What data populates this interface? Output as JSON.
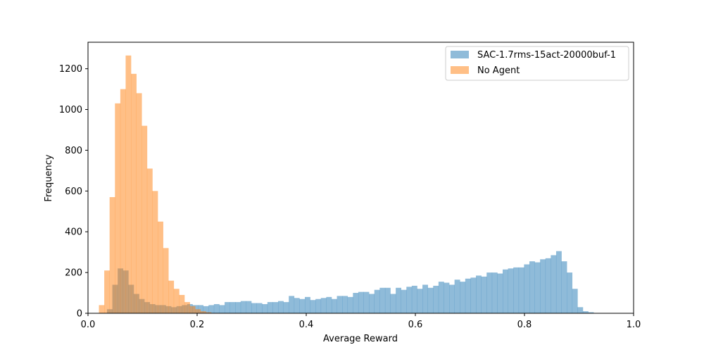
{
  "chart_data": {
    "type": "histogram",
    "title": "",
    "xlabel": "Average Reward",
    "ylabel": "Frequency",
    "xlim": [
      0.0,
      1.0
    ],
    "ylim": [
      0,
      1330
    ],
    "xticks": [
      "0.0",
      "0.2",
      "0.4",
      "0.6",
      "0.8",
      "1.0"
    ],
    "yticks": [
      "0",
      "200",
      "400",
      "600",
      "800",
      "1000",
      "1200"
    ],
    "grid": false,
    "legend_position": "top-right",
    "series": [
      {
        "name": "SAC-1.7rms-15act-20000buf-1",
        "color": "#1f77b4",
        "alpha": 0.5,
        "bin_start": 0.025,
        "bin_width": 0.0098,
        "values": [
          0,
          20,
          140,
          220,
          210,
          140,
          95,
          70,
          55,
          45,
          40,
          40,
          35,
          30,
          35,
          40,
          45,
          40,
          40,
          35,
          40,
          45,
          40,
          55,
          55,
          55,
          60,
          60,
          50,
          50,
          45,
          55,
          55,
          60,
          55,
          85,
          75,
          70,
          80,
          65,
          70,
          75,
          80,
          70,
          85,
          85,
          80,
          100,
          105,
          105,
          95,
          115,
          125,
          125,
          95,
          125,
          115,
          130,
          135,
          120,
          140,
          125,
          135,
          155,
          150,
          140,
          165,
          155,
          170,
          175,
          185,
          180,
          200,
          200,
          195,
          215,
          220,
          225,
          225,
          240,
          255,
          250,
          265,
          270,
          285,
          305,
          255,
          200,
          120,
          30,
          10,
          5
        ]
      },
      {
        "name": "No Agent",
        "color": "#ff7f0e",
        "alpha": 0.5,
        "bin_start": 0.02,
        "bin_width": 0.0098,
        "values": [
          40,
          210,
          570,
          1030,
          1100,
          1265,
          1175,
          1080,
          920,
          710,
          600,
          450,
          320,
          160,
          120,
          90,
          55,
          35,
          20,
          10,
          5
        ]
      }
    ]
  }
}
